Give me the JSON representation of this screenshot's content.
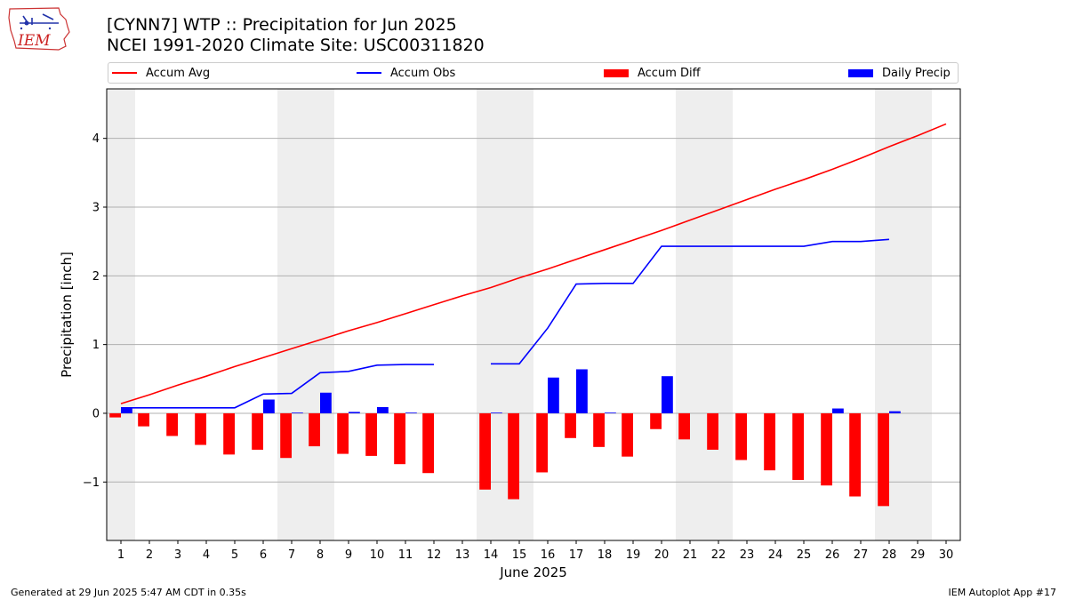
{
  "header": {
    "title": "[CYNN7] WTP :: Precipitation for Jun 2025",
    "subtitle": "NCEI 1991-2020 Climate Site: USC00311820"
  },
  "logo": {
    "text": "IEM",
    "color": "#cc2222"
  },
  "footer": {
    "generated": "Generated at 29 Jun 2025 5:47 AM CDT in 0.35s",
    "app": "IEM Autoplot App #17"
  },
  "legend": {
    "items": [
      {
        "label": "Accum Avg",
        "kind": "line",
        "color": "#ff0000"
      },
      {
        "label": "Accum Obs",
        "kind": "line",
        "color": "#0000ff"
      },
      {
        "label": "Accum Diff",
        "kind": "bar",
        "color": "#ff0000"
      },
      {
        "label": "Daily Precip",
        "kind": "bar",
        "color": "#0000ff"
      }
    ]
  },
  "chart_data": {
    "type": "bar",
    "xlabel": "June 2025",
    "ylabel": "Precipitation [inch]",
    "x": [
      1,
      2,
      3,
      4,
      5,
      6,
      7,
      8,
      9,
      10,
      11,
      12,
      13,
      14,
      15,
      16,
      17,
      18,
      19,
      20,
      21,
      22,
      23,
      24,
      25,
      26,
      27,
      28,
      29,
      30
    ],
    "xlim": [
      0.5,
      30.5
    ],
    "ylim": [
      -1.85,
      4.72
    ],
    "yticks": [
      -1,
      0,
      1,
      2,
      3,
      4
    ],
    "ytick_labels": [
      "−1",
      "0",
      "1",
      "2",
      "3",
      "4"
    ],
    "grid": "y",
    "weekend_shading": [
      [
        0.5,
        1.5
      ],
      [
        6.5,
        8.5
      ],
      [
        13.5,
        15.5
      ],
      [
        20.5,
        22.5
      ],
      [
        27.5,
        29.5
      ]
    ],
    "legend_position": "top",
    "series": [
      {
        "name": "Accum Avg",
        "kind": "line",
        "color": "#ff0000",
        "values": [
          0.14,
          0.27,
          0.41,
          0.54,
          0.68,
          0.81,
          0.94,
          1.07,
          1.2,
          1.32,
          1.45,
          1.58,
          1.71,
          1.83,
          1.97,
          2.1,
          2.24,
          2.38,
          2.52,
          2.66,
          2.81,
          2.96,
          3.11,
          3.26,
          3.4,
          3.55,
          3.71,
          3.88,
          4.04,
          4.21
        ]
      },
      {
        "name": "Accum Obs",
        "kind": "line",
        "color": "#0000ff",
        "values": [
          0.08,
          0.08,
          0.08,
          0.08,
          0.08,
          0.28,
          0.29,
          0.59,
          0.61,
          0.7,
          0.71,
          0.71,
          null,
          0.72,
          0.72,
          1.24,
          1.88,
          1.89,
          1.89,
          2.43,
          2.43,
          2.43,
          2.43,
          2.43,
          2.43,
          2.5,
          2.5,
          2.53,
          null,
          null
        ]
      },
      {
        "name": "Accum Diff",
        "kind": "bar",
        "color": "#ff0000",
        "values": [
          -0.06,
          -0.19,
          -0.33,
          -0.46,
          -0.6,
          -0.53,
          -0.65,
          -0.48,
          -0.59,
          -0.62,
          -0.74,
          -0.87,
          null,
          -1.11,
          -1.25,
          -0.86,
          -0.36,
          -0.49,
          -0.63,
          -0.23,
          -0.38,
          -0.53,
          -0.68,
          -0.83,
          -0.97,
          -1.05,
          -1.21,
          -1.35,
          null,
          null
        ]
      },
      {
        "name": "Daily Precip",
        "kind": "bar",
        "color": "#0000ff",
        "values": [
          0.08,
          0,
          0,
          0,
          0,
          0.2,
          0.01,
          0.3,
          0.02,
          0.09,
          0.01,
          0,
          null,
          0.01,
          0,
          0.52,
          0.64,
          0.01,
          0,
          0.54,
          0,
          0,
          0,
          0,
          0,
          0.07,
          0,
          0.03,
          null,
          null
        ]
      }
    ]
  }
}
